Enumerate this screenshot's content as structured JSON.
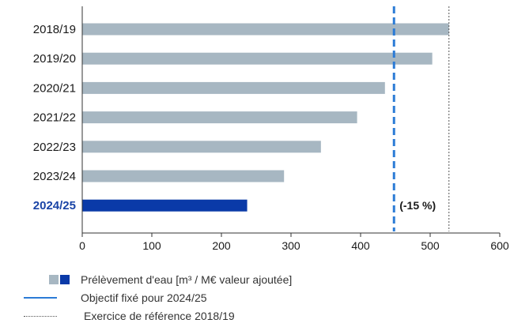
{
  "chart_data": {
    "type": "bar",
    "orientation": "horizontal",
    "categories": [
      "2018/19",
      "2019/20",
      "2020/21",
      "2021/22",
      "2022/23",
      "2023/24",
      "2024/25"
    ],
    "values": [
      527,
      503,
      435,
      395,
      343,
      290,
      237
    ],
    "highlight_category": "2024/25",
    "xlim": [
      0,
      600
    ],
    "xticks": [
      0,
      100,
      200,
      300,
      400,
      500,
      600
    ],
    "grid": false,
    "reference_lines": [
      {
        "name": "Objectif fixé pour 2024/25",
        "x": 448,
        "style": "dashed",
        "color": "#2b7bd6"
      },
      {
        "name": "Exercice de référence 2018/19",
        "x": 527,
        "style": "dotted",
        "color": "#555555"
      }
    ],
    "annotation": "(-15 %)",
    "colors": {
      "bar": "#a7b7c2",
      "highlight": "#0a3aa8",
      "target": "#2b7bd6",
      "baseline": "#555555",
      "highlight_label": "#1a44a6"
    },
    "legend": {
      "placement": "bottom-left",
      "entries": [
        {
          "label": "Prélèvement d'eau [m³ / M€ valeur ajoutée]",
          "icon": "bar-swatch-pair"
        },
        {
          "label": "Objectif fixé pour 2024/25",
          "icon": "solid-line"
        },
        {
          "label": "Exercice de référence 2018/19",
          "icon": "dotted-line"
        }
      ]
    }
  }
}
